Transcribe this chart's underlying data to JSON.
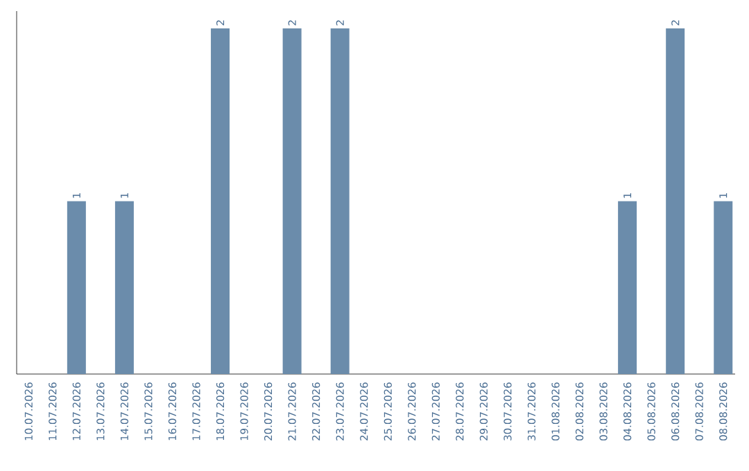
{
  "chart_data": {
    "type": "bar",
    "categories": [
      "10.07.2026",
      "11.07.2026",
      "12.07.2026",
      "13.07.2026",
      "14.07.2026",
      "15.07.2026",
      "16.07.2026",
      "17.07.2026",
      "18.07.2026",
      "19.07.2026",
      "20.07.2026",
      "21.07.2026",
      "22.07.2026",
      "23.07.2026",
      "24.07.2026",
      "25.07.2026",
      "26.07.2026",
      "27.07.2026",
      "28.07.2026",
      "29.07.2026",
      "30.07.2026",
      "31.07.2026",
      "01.08.2026",
      "02.08.2026",
      "03.08.2026",
      "04.08.2026",
      "05.08.2026",
      "06.08.2026",
      "07.08.2026",
      "08.08.2026"
    ],
    "values": [
      0,
      0,
      1,
      0,
      1,
      0,
      0,
      0,
      2,
      0,
      0,
      2,
      0,
      2,
      0,
      0,
      0,
      0,
      0,
      0,
      0,
      0,
      0,
      0,
      0,
      1,
      0,
      2,
      0,
      1
    ],
    "value_labels": [
      null,
      null,
      "1",
      null,
      "1",
      null,
      null,
      null,
      "2",
      null,
      null,
      "2",
      null,
      "2",
      null,
      null,
      null,
      null,
      null,
      null,
      null,
      null,
      null,
      null,
      null,
      "1",
      null,
      "2",
      null,
      "1"
    ],
    "color": "#6b8cab"
  }
}
